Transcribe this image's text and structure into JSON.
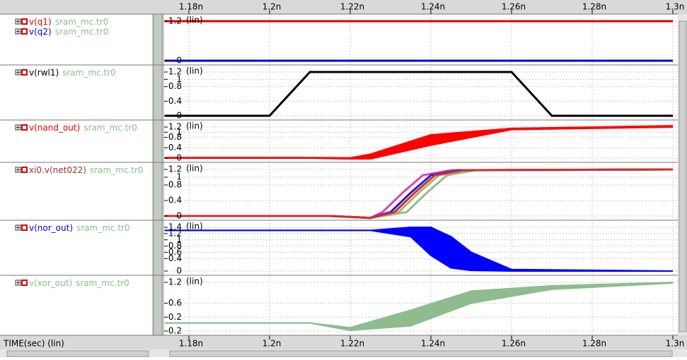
{
  "time_axis": {
    "xlim": [
      1.174,
      1.3
    ],
    "ticks": [
      {
        "value": 1.18,
        "label": "1.18n"
      },
      {
        "value": 1.2,
        "label": "1.2n"
      },
      {
        "value": 1.22,
        "label": "1.22n"
      },
      {
        "value": 1.24,
        "label": "1.24n"
      },
      {
        "value": 1.26,
        "label": "1.26n"
      },
      {
        "value": 1.28,
        "label": "1.28n"
      },
      {
        "value": 1.3,
        "label": "1.3n"
      }
    ]
  },
  "x_label": "TIME(sec) (lin)",
  "panels": [
    {
      "signals": [
        {
          "name": "v(q1)",
          "source": "sram_mc.tr0",
          "color": "#e00000"
        },
        {
          "name": "v(q2)",
          "source": "sram_mc.tr0",
          "color": "#0000e0"
        }
      ],
      "scale": "(lin)",
      "ylim": [
        0,
        1.2
      ],
      "yticks": [
        0,
        1.2
      ],
      "traces": [
        {
          "color": "#e00000",
          "x": [
            1.174,
            1.3
          ],
          "values": [
            1.2,
            1.2
          ]
        },
        {
          "color": "#0000e0",
          "x": [
            1.174,
            1.3
          ],
          "values": [
            0,
            0
          ]
        }
      ],
      "bands": []
    },
    {
      "signals": [
        {
          "name": "v(rwl1)",
          "source": "sram_mc.tr0",
          "color": "#000000"
        }
      ],
      "scale": "(lin)",
      "ylim": [
        0,
        1.2
      ],
      "yticks": [
        0,
        0.4,
        0.8,
        1,
        1.2
      ],
      "traces": [
        {
          "color": "#000000",
          "x": [
            1.174,
            1.2,
            1.21,
            1.26,
            1.27,
            1.3
          ],
          "values": [
            0,
            0,
            1.2,
            1.2,
            0,
            0
          ]
        }
      ],
      "bands": []
    },
    {
      "signals": [
        {
          "name": "v(nand_out)",
          "source": "sram_mc.tr0",
          "color": "#e00000"
        }
      ],
      "scale": "(lin)",
      "ylim": [
        0,
        1.2
      ],
      "yticks": [
        0,
        0.4,
        0.8,
        1,
        1.2
      ],
      "traces": [],
      "bands": [
        {
          "color": "#ff0000",
          "x": [
            1.174,
            1.21,
            1.22,
            1.225,
            1.24,
            1.26,
            1.3
          ],
          "upper": [
            0.02,
            0.02,
            0.01,
            0.15,
            0.9,
            1.15,
            1.25
          ],
          "lower": [
            0,
            0,
            -0.03,
            -0.03,
            0.5,
            1.1,
            1.2
          ]
        }
      ]
    },
    {
      "signals": [
        {
          "name": "xi0.v(net022)",
          "source": "sram_mc.tr0",
          "color": "#a03030"
        }
      ],
      "scale": "(lin)",
      "ylim": [
        0,
        1.2
      ],
      "yticks": [
        0,
        0.4,
        0.8,
        1,
        1.2
      ],
      "traces": [
        {
          "color": "#8fbc8f",
          "x": [
            1.174,
            1.215,
            1.225,
            1.234,
            1.239,
            1.244,
            1.251,
            1.3
          ],
          "values": [
            0,
            0,
            -0.05,
            0.1,
            0.6,
            1.05,
            1.18,
            1.2
          ]
        },
        {
          "color": "#e040c0",
          "x": [
            1.174,
            1.215,
            1.225,
            1.228,
            1.233,
            1.238,
            1.245,
            1.3
          ],
          "values": [
            0,
            0,
            -0.05,
            0.1,
            0.6,
            1.05,
            1.18,
            1.2
          ]
        },
        {
          "color": "#2020d0",
          "x": [
            1.174,
            1.215,
            1.225,
            1.23,
            1.235,
            1.24,
            1.247,
            1.3
          ],
          "values": [
            0,
            0,
            -0.05,
            0.1,
            0.6,
            1.05,
            1.18,
            1.2
          ]
        },
        {
          "color": "#b0b070",
          "x": [
            1.174,
            1.215,
            1.225,
            1.232,
            1.237,
            1.242,
            1.249,
            1.3
          ],
          "values": [
            0,
            0,
            -0.05,
            0.1,
            0.6,
            1.05,
            1.18,
            1.2
          ]
        },
        {
          "color": "#d03030",
          "x": [
            1.174,
            1.215,
            1.225,
            1.231,
            1.236,
            1.241,
            1.248,
            1.3
          ],
          "values": [
            0,
            0,
            -0.05,
            0.1,
            0.6,
            1.05,
            1.18,
            1.2
          ]
        }
      ],
      "bands": []
    },
    {
      "signals": [
        {
          "name": "v(nor_out)",
          "source": "sram_mc.tr0",
          "color": "#0000e0"
        }
      ],
      "scale": "(lin)",
      "ylim": [
        0,
        1.4
      ],
      "yticks": [
        0,
        0.4,
        0.6,
        0.8,
        1,
        1.2,
        1.4
      ],
      "traces": [],
      "bands": [
        {
          "color": "#0000ff",
          "x": [
            1.174,
            1.225,
            1.235,
            1.24,
            1.245,
            1.25,
            1.26,
            1.3
          ],
          "upper": [
            1.3,
            1.3,
            1.4,
            1.4,
            1.1,
            0.6,
            0.05,
            0
          ],
          "lower": [
            1.3,
            1.3,
            1.1,
            0.5,
            0.1,
            0.02,
            0,
            0
          ]
        }
      ]
    },
    {
      "signals": [
        {
          "name": "v(xor_out)",
          "source": "sram_mc.tr0",
          "color": "#8fbc8f"
        }
      ],
      "scale": "(lin)",
      "ylim": [
        -0.2,
        1.2
      ],
      "yticks": [
        -0.2,
        0.2,
        0.6,
        1.2
      ],
      "traces": [],
      "bands": [
        {
          "color": "#8fbc8f",
          "x": [
            1.174,
            1.21,
            1.22,
            1.235,
            1.25,
            1.27,
            1.3
          ],
          "upper": [
            0.03,
            0.03,
            -0.1,
            0.4,
            0.95,
            1.1,
            1.2
          ],
          "lower": [
            0.03,
            0.03,
            -0.18,
            -0.05,
            0.6,
            1.0,
            1.18
          ]
        }
      ]
    }
  ]
}
